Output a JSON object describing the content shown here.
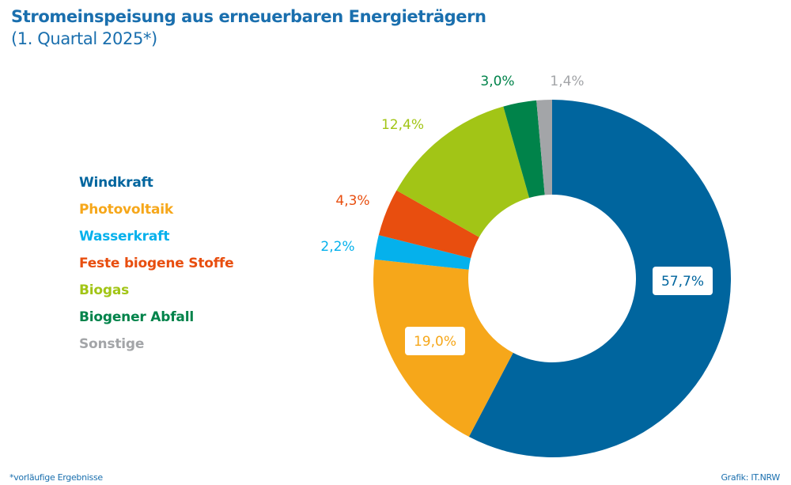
{
  "header": {
    "title": "Stromeinspeisung aus erneuerbaren Energieträgern",
    "subtitle": "(1. Quartal 2025*)"
  },
  "footer": {
    "footnote": "*vorläufige Ergebnisse",
    "credit": "Grafik: IT.NRW"
  },
  "chart_data": {
    "type": "pie",
    "variant": "donut",
    "title": "Stromeinspeisung aus erneuerbaren Energieträgern",
    "subtitle": "(1. Quartal 2025*)",
    "unit": "%",
    "start": "12 o'clock, clockwise",
    "legend_position": "left",
    "categories": [
      "Windkraft",
      "Photovoltaik",
      "Wasserkraft",
      "Feste biogene Stoffe",
      "Biogas",
      "Biogener Abfall",
      "Sonstige"
    ],
    "values": [
      57.7,
      19.0,
      2.2,
      4.3,
      12.4,
      3.0,
      1.4
    ],
    "labels": [
      "57,7%",
      "19,0%",
      "2,2%",
      "4,3%",
      "12,4%",
      "3,0%",
      "1,4%"
    ],
    "colors": [
      "#00659e",
      "#f6a71a",
      "#05b1ec",
      "#e84e0f",
      "#a2c516",
      "#00834a",
      "#a3a5a8"
    ],
    "label_style": [
      "boxed",
      "boxed",
      "outside",
      "outside",
      "outside",
      "outside",
      "outside"
    ]
  }
}
